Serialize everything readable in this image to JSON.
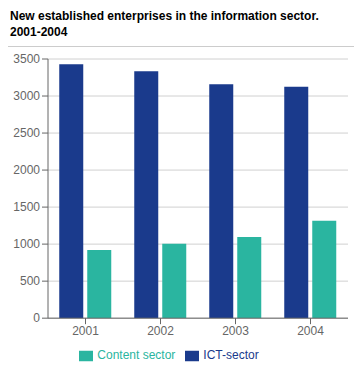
{
  "chart_data": {
    "type": "bar",
    "title": "New established enterprises in the information sector.",
    "subtitle": "2001-2004",
    "categories": [
      "2001",
      "2002",
      "2003",
      "2004"
    ],
    "series": [
      {
        "name": "ICT-sector",
        "color": "#1a3a8c",
        "values": [
          3430,
          3335,
          3160,
          3125
        ]
      },
      {
        "name": "Content sector",
        "color": "#2ab5a0",
        "values": [
          920,
          1005,
          1095,
          1315
        ]
      }
    ],
    "ylim": [
      0,
      3500
    ],
    "yticks": [
      0,
      500,
      1000,
      1500,
      2000,
      2500,
      3000,
      3500
    ],
    "grid": true,
    "legend": "bottom"
  }
}
